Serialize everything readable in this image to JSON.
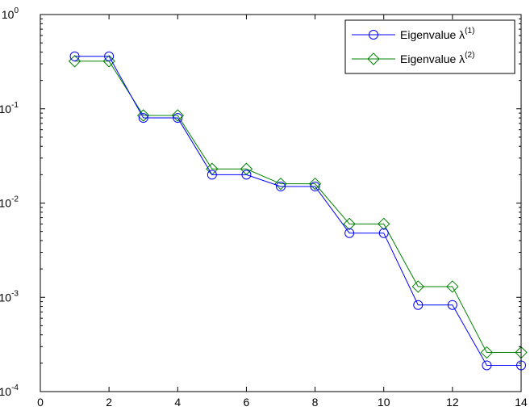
{
  "chart_data": {
    "type": "line",
    "title": "",
    "xlabel": "",
    "ylabel": "",
    "xlim": [
      0,
      14
    ],
    "ylim": [
      0.0001,
      1
    ],
    "yscale": "log",
    "grid": false,
    "legend_position": "top-right",
    "x_ticks": [
      "0",
      "2",
      "4",
      "6",
      "8",
      "10",
      "12",
      "14"
    ],
    "y_ticks": [
      {
        "base": "10",
        "exp": "0"
      },
      {
        "base": "10",
        "exp": "-1"
      },
      {
        "base": "10",
        "exp": "-2"
      },
      {
        "base": "10",
        "exp": "-3"
      },
      {
        "base": "10",
        "exp": "-4"
      }
    ],
    "x": [
      1,
      2,
      3,
      4,
      5,
      6,
      7,
      8,
      9,
      10,
      11,
      12,
      13,
      14
    ],
    "series": [
      {
        "name_base": "Eigenvalue λ",
        "name_sup": "(1)",
        "color": "#0000ff",
        "marker": "circle",
        "values": [
          0.36,
          0.36,
          0.08,
          0.08,
          0.02,
          0.02,
          0.015,
          0.015,
          0.0048,
          0.0048,
          0.00083,
          0.00083,
          0.00019,
          0.00019
        ]
      },
      {
        "name_base": "Eigenvalue λ",
        "name_sup": "(2)",
        "color": "#008000",
        "marker": "diamond",
        "values": [
          0.32,
          0.32,
          0.085,
          0.085,
          0.023,
          0.023,
          0.016,
          0.016,
          0.006,
          0.006,
          0.0013,
          0.0013,
          0.00026,
          0.00026
        ]
      }
    ]
  }
}
